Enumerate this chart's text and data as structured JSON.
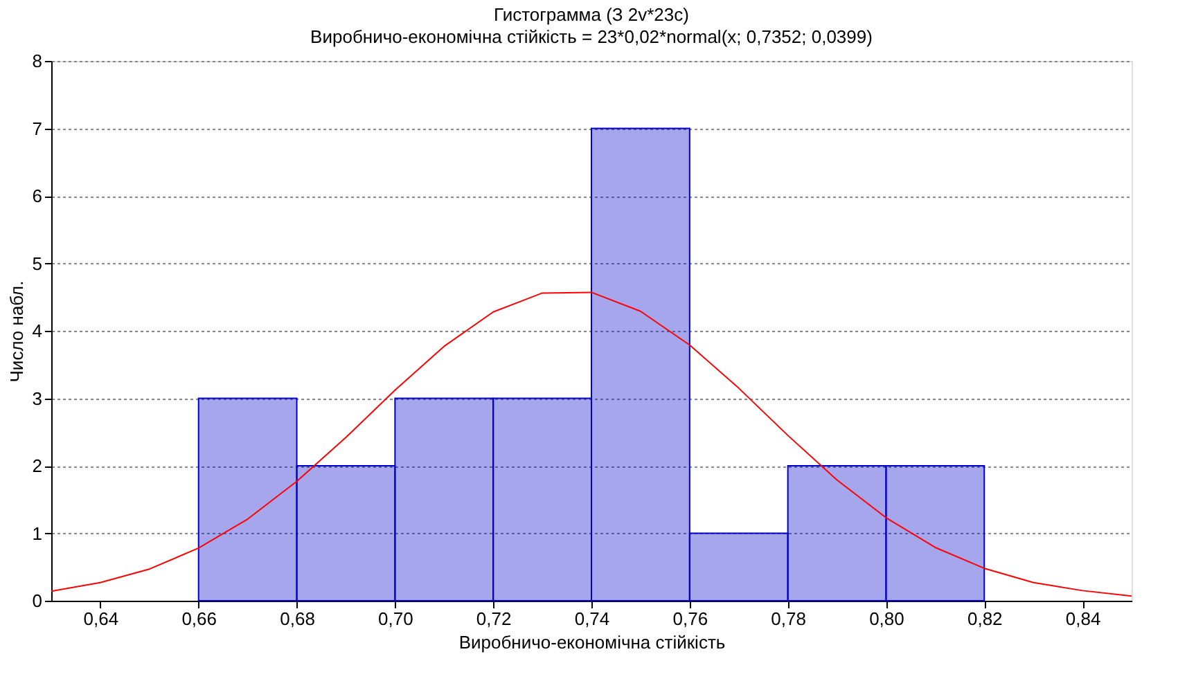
{
  "chart_data": {
    "type": "histogram",
    "title": "Гистограмма (З 2v*23c)",
    "subtitle": "Виробничо-економічна стійкість = 23*0,02*normal(x; 0,7352; 0,0399)",
    "xlabel": "Виробничо-економічна стійкість",
    "ylabel": "Число набл.",
    "bins": [
      0.66,
      0.68,
      0.7,
      0.72,
      0.74,
      0.76,
      0.78,
      0.8,
      0.82
    ],
    "series": [
      {
        "color": "#0000cc",
        "values": [
          3,
          2,
          3,
          3,
          7,
          1,
          2,
          2
        ]
      },
      {
        "type": "line",
        "color": "#ff0000",
        "x": [
          0.63,
          0.64,
          0.65,
          0.66,
          0.67,
          0.68,
          0.69,
          0.7,
          0.71,
          0.72,
          0.73,
          0.74,
          0.75,
          0.76,
          0.77,
          0.78,
          0.79,
          0.8,
          0.81,
          0.82,
          0.83,
          0.84,
          0.85
        ],
        "values": [
          0.14,
          0.27,
          0.47,
          0.78,
          1.21,
          1.77,
          2.42,
          3.12,
          3.77,
          4.28,
          4.56,
          4.57,
          4.29,
          3.79,
          3.15,
          2.45,
          1.79,
          1.23,
          0.79,
          0.48,
          0.27,
          0.15,
          0.07
        ]
      }
    ],
    "xlim": [
      0.63,
      0.85
    ],
    "xticks": [
      {
        "value": 0.64,
        "label": "0,64"
      },
      {
        "value": 0.66,
        "label": "0,66"
      },
      {
        "value": 0.68,
        "label": "0,68"
      },
      {
        "value": 0.7,
        "label": "0,70"
      },
      {
        "value": 0.72,
        "label": "0,72"
      },
      {
        "value": 0.74,
        "label": "0,74"
      },
      {
        "value": 0.76,
        "label": "0,76"
      },
      {
        "value": 0.78,
        "label": "0,78"
      },
      {
        "value": 0.8,
        "label": "0,80"
      },
      {
        "value": 0.82,
        "label": "0,82"
      },
      {
        "value": 0.84,
        "label": "0,84"
      }
    ],
    "ylim": [
      0,
      8
    ],
    "yticks": [
      0,
      1,
      2,
      3,
      4,
      5,
      6,
      7,
      8
    ],
    "grid": "y"
  }
}
